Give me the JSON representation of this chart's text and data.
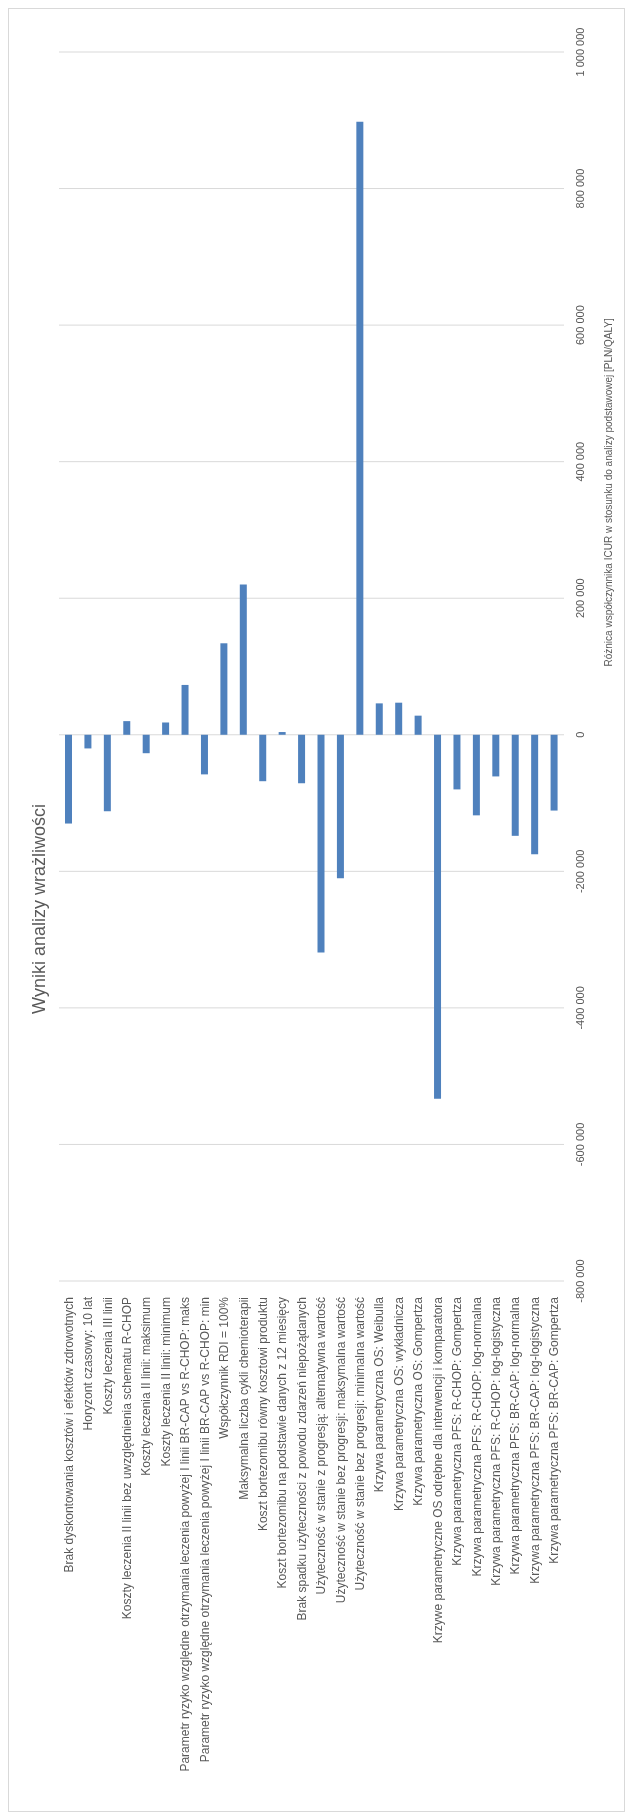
{
  "chart_data": {
    "type": "bar",
    "title": "Wyniki analizy wrażliwości",
    "ylabel": "Różnica współczynnika ICUR w stosunku do analizy podstawowej [PLN/QALY]",
    "categories": [
      "Brak dyskontowania kosztów i efektów zdrowotnych",
      "Horyzont czasowy: 10 lat",
      "Koszty leczenia III linii",
      "Koszty leczenia II linii bez uwzględnienia schematu R-CHOP",
      "Koszty leczenia II linii: maksimum",
      "Koszty leczenia II linii: minimum",
      "Parametr ryzyko względne otrzymania leczenia powyżej I linii BR-CAP vs R-CHOP: maks",
      "Parametr ryzyko względne otrzymania leczenia powyżej I linii BR-CAP vs R-CHOP: min",
      "Współczynnik RDI = 100%",
      "Maksymalna liczba cykli chemioterapii",
      "Koszt bortezomibu równy kosztowi produktu",
      "Koszt bortezomibu na podstawie danych z 12 miesięcy",
      "Brak spadku użyteczności z powodu zdarzeń niepożądanych",
      "Użyteczność w stanie z progresją: alternatywna wartość",
      "Użyteczność w stanie bez progresji: maksymalna wartość",
      "Użyteczność w stanie bez progresji: minimalna wartość",
      "Krzywa parametryczna OS: Weibulla",
      "Krzywa parametryczna OS: wykładnicza",
      "Krzywa parametryczna OS: Gompertza",
      "Krzywe parametryczne OS odrębne dla interwencji i komparatora",
      "Krzywa parametryczna PFS: R-CHOP: Gompertza",
      "Krzywa parametryczna PFS: R-CHOP: log-normalna",
      "Krzywa parametryczna PFS: R-CHOP: log-logistyczna",
      "Krzywa parametryczna PFS: BR-CAP: log-normalna",
      "Krzywa parametryczna PFS: BR-CAP: log-logistyczna",
      "Krzywa parametryczna PFS: BR-CAP: Gompertza"
    ],
    "values": [
      -130000,
      -20000,
      -112000,
      20000,
      -27000,
      18000,
      73000,
      -58000,
      134000,
      220000,
      -68000,
      4000,
      -71000,
      -319000,
      -210000,
      898000,
      46000,
      47000,
      28000,
      -533000,
      -80000,
      -118000,
      -61000,
      -148000,
      -175000,
      -111000
    ],
    "color": "#4f81bd",
    "ylim": [
      -800000,
      1000000
    ],
    "yticks": [
      {
        "value": -800000,
        "label": "-800 000"
      },
      {
        "value": -600000,
        "label": "-600 000"
      },
      {
        "value": -400000,
        "label": "-400 000"
      },
      {
        "value": -200000,
        "label": "-200 000"
      },
      0,
      {
        "value": 200000,
        "label": "200 000"
      },
      {
        "value": 400000,
        "label": "400 000"
      },
      {
        "value": 600000,
        "label": "600 000"
      },
      {
        "value": 800000,
        "label": "800 000"
      },
      {
        "value": 1000000,
        "label": "1 000 000"
      }
    ],
    "grid": "y"
  }
}
